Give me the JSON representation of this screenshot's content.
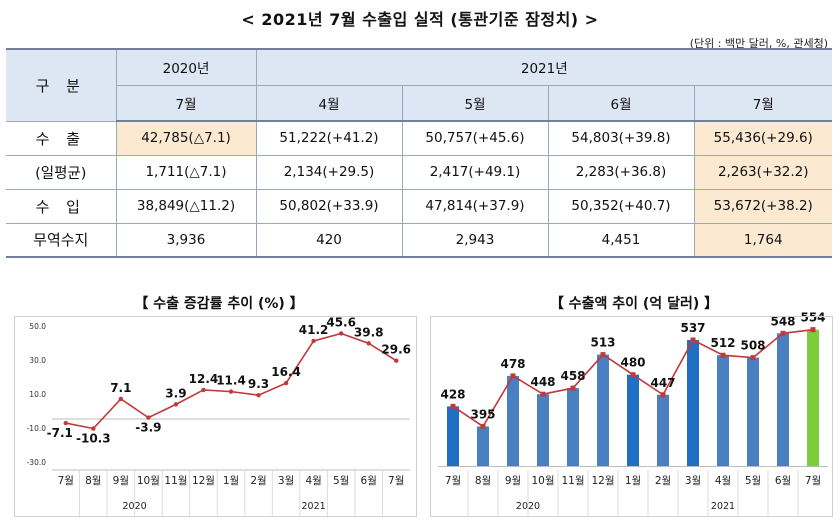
{
  "title": "< 2021년 7월 수출입 실적 (통관기준 잠정치) >",
  "unit_note": "(단위 : 백만 달러, %, 관세청)",
  "table": {
    "header_label": "구 분",
    "year_2020": "2020년",
    "year_2021": "2021년",
    "months": [
      "7월",
      "4월",
      "5월",
      "6월",
      "7월"
    ],
    "rows": [
      {
        "label": "수 출",
        "cells": [
          "42,785(△7.1)",
          "51,222(+41.2)",
          "50,757(+45.6)",
          "54,803(+39.8)",
          "55,436(+29.6)"
        ]
      },
      {
        "label": "(일평균)",
        "cells": [
          "1,711(△7.1)",
          "2,134(+29.5)",
          "2,417(+49.1)",
          "2,283(+36.8)",
          "2,263(+32.2)"
        ]
      },
      {
        "label": "수 입",
        "cells": [
          "38,849(△11.2)",
          "50,802(+33.9)",
          "47,814(+37.9)",
          "50,352(+40.7)",
          "53,672(+38.2)"
        ]
      },
      {
        "label": "무역수지",
        "cells": [
          "3,936",
          "420",
          "2,943",
          "4,451",
          "1,764"
        ]
      }
    ]
  },
  "chart_data": [
    {
      "type": "line",
      "title": "【 수출 증감률 추이 (%) 】",
      "categories": [
        "7월",
        "8월",
        "9월",
        "10월",
        "11월",
        "12월",
        "1월",
        "2월",
        "3월",
        "4월",
        "5월",
        "6월",
        "7월"
      ],
      "year_labels": [
        "2020",
        "2021"
      ],
      "values": [
        -7.1,
        -10.3,
        7.1,
        -3.9,
        3.9,
        12.4,
        11.4,
        9.3,
        16.4,
        41.2,
        45.6,
        39.8,
        29.6
      ],
      "data_labels": [
        "-7.1",
        "-10.3",
        "7.1",
        "-3.9",
        "3.9",
        "12.4",
        "11.4",
        "9.3",
        "16.4",
        "41.2",
        "45.6",
        "39.8",
        "29.6"
      ],
      "yticks": [
        "50.0",
        "30.0",
        "10.0",
        "-10.0",
        "-30.0"
      ],
      "ylim": [
        -30,
        50
      ],
      "line_color": "#c0393b"
    },
    {
      "type": "bar",
      "title": "【 수출액 추이 (억 달러) 】",
      "categories": [
        "7월",
        "8월",
        "9월",
        "10월",
        "11월",
        "12월",
        "1월",
        "2월",
        "3월",
        "4월",
        "5월",
        "6월",
        "7월"
      ],
      "year_labels": [
        "2020",
        "2021"
      ],
      "values": [
        428,
        395,
        478,
        448,
        458,
        513,
        480,
        447,
        537,
        512,
        508,
        548,
        554
      ],
      "data_labels": [
        "428",
        "395",
        "478",
        "448",
        "458",
        "513",
        "480",
        "447",
        "537",
        "512",
        "508",
        "548",
        "554"
      ],
      "ylim": [
        330,
        560
      ],
      "bar_colors": [
        "#1f6fc5",
        "#4a7fc1",
        "#4a7fc1",
        "#4a7fc1",
        "#4a7fc1",
        "#4a7fc1",
        "#1f6fc5",
        "#4a7fc1",
        "#1f6fc5",
        "#4a7fc1",
        "#4a7fc1",
        "#4a7fc1",
        "#7ccc3c"
      ],
      "line_color": "#c0393b"
    }
  ]
}
